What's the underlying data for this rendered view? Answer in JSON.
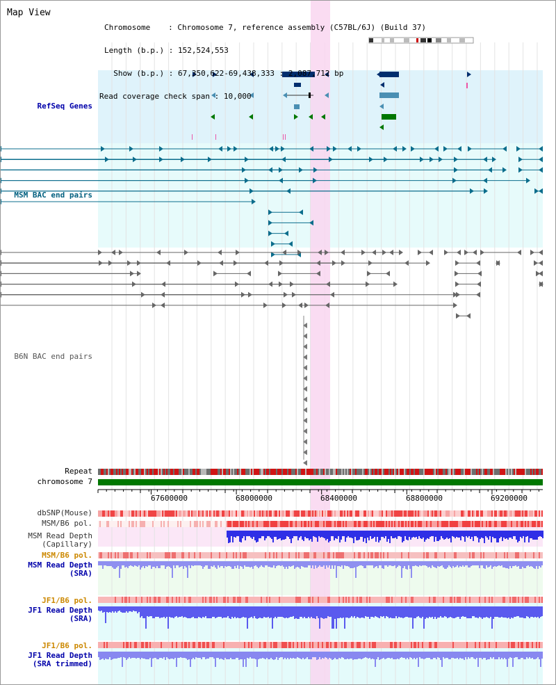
{
  "title": "Map View",
  "info": {
    "chromosome_key": "Chromosome",
    "chromosome_val": "Chromosome 7, reference assembly (C57BL/6J) (Build 37)",
    "length_key": "Length (b.p.)",
    "length_val": "152,524,553",
    "show_key": "Show (b.p.)",
    "show_val": "67,350,622-69,438,333 : 2,087,712 bp",
    "span_key": "Read coverage check span",
    "span_val": "10,000"
  },
  "tracks": {
    "refseq": "RefSeq Genes",
    "msm_bac": "MSM BAC end pairs",
    "b6n_bac": "B6N BAC end pairs",
    "repeat": "Repeat",
    "chrom": "chromosome 7",
    "dbsnp": "dbSNP(Mouse)",
    "msm_b6_pol_1": "MSM/B6 pol.",
    "msm_depth_cap": "MSM Read Depth\n(Capillary)",
    "msm_b6_pol_2": "MSM/B6 pol.",
    "msm_depth_sra": "MSM Read Depth\n(SRA)",
    "jf1_b6_pol_1": "JF1/B6 pol.",
    "jf1_depth_sra": "JF1 Read Depth\n(SRA)",
    "jf1_b6_pol_2": "JF1/B6 pol.",
    "jf1_depth_trim": "JF1 Read Depth\n(SRA trimmed)"
  },
  "axis": {
    "start": 67350622,
    "end": 69438333,
    "ticks": [
      "67600000",
      "68000000",
      "68400000",
      "68800000",
      "69200000"
    ]
  },
  "colors": {
    "refseq_label": "#0000aa",
    "msm_label": "#005f7f",
    "b6n_label": "#555555",
    "pol_label_msm": "#cc8800",
    "depth_label": "#0000aa",
    "highlight": "#f9d6f0",
    "refseq_bg": "#dff3fb",
    "msm_bg": "#e7fbfb",
    "chrom_bar": "#007700"
  }
}
